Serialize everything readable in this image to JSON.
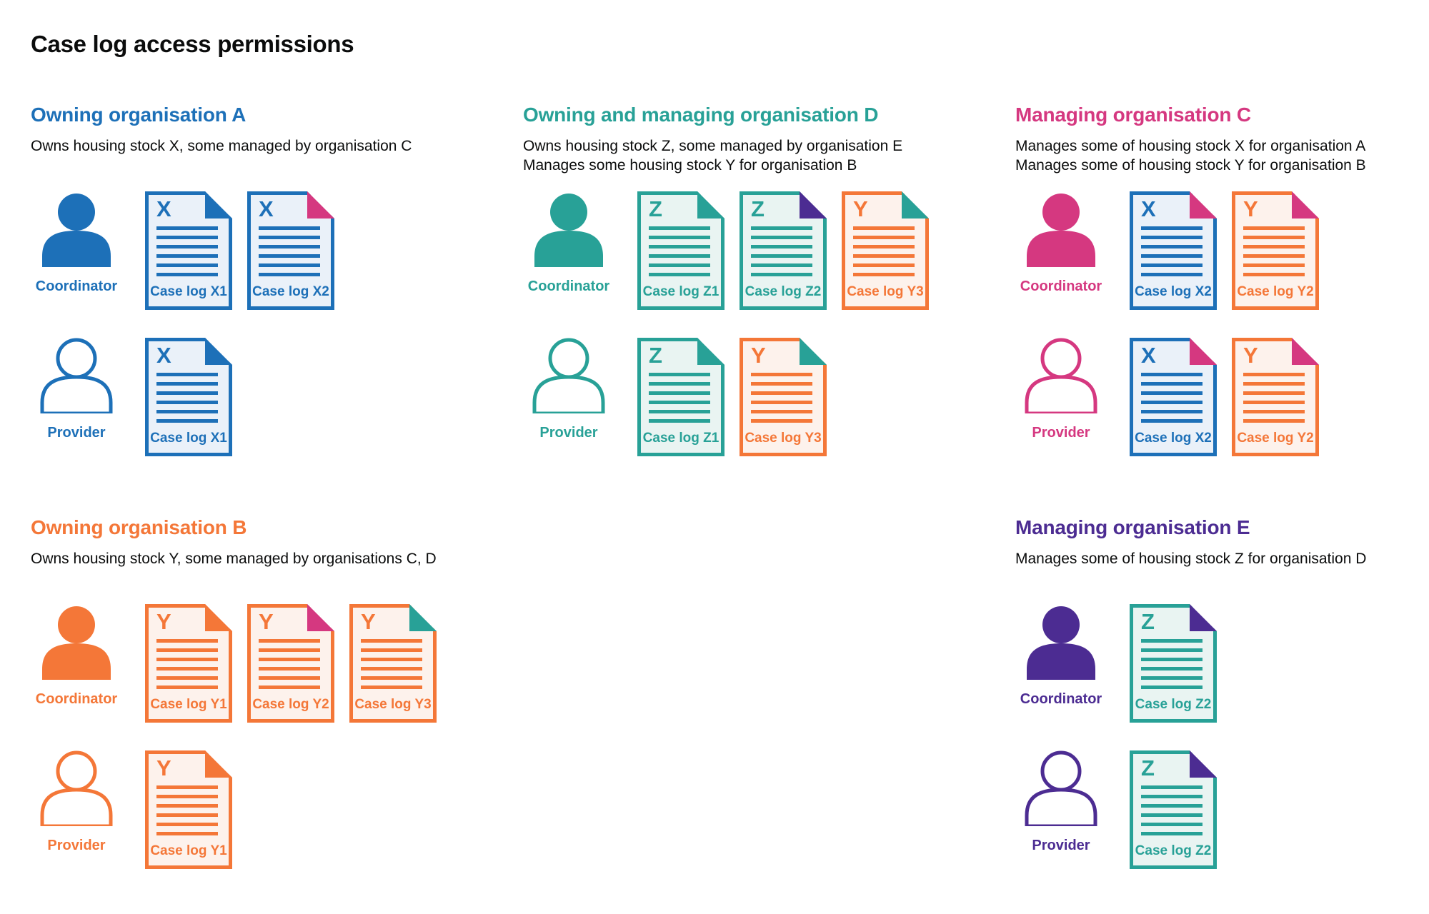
{
  "title": "Case log access permissions",
  "colors": {
    "blue": "#1d70b8",
    "teal": "#28a197",
    "orange": "#f47738",
    "pink": "#d53880",
    "purple": "#4c2c92",
    "text": "#0b0c0c",
    "blue_bg": "#eaf1f9",
    "teal_bg": "#e9f4f2",
    "orange_bg": "#fdf2ec"
  },
  "icons": {
    "coordinator": "person-filled-icon",
    "provider": "person-outline-icon",
    "document": "case-log-document-icon",
    "fold": "folded-corner-icon"
  },
  "sections": [
    {
      "id": "org-a",
      "title": "Owning organisation A",
      "color_key": "blue",
      "description_lines": [
        "Owns housing stock X, some managed by organisation C"
      ],
      "rows": [
        {
          "role": "Coordinator",
          "docs": [
            {
              "letter": "X",
              "label": "Case log X1",
              "doc_color": "blue",
              "fold_color": "blue"
            },
            {
              "letter": "X",
              "label": "Case log X2",
              "doc_color": "blue",
              "fold_color": "pink"
            }
          ]
        },
        {
          "role": "Provider",
          "docs": [
            {
              "letter": "X",
              "label": "Case log X1",
              "doc_color": "blue",
              "fold_color": "blue"
            }
          ]
        }
      ]
    },
    {
      "id": "org-d",
      "title": "Owning and managing organisation D",
      "color_key": "teal",
      "description_lines": [
        "Owns housing stock Z, some managed by organisation E",
        "Manages some housing stock Y for organisation B"
      ],
      "rows": [
        {
          "role": "Coordinator",
          "docs": [
            {
              "letter": "Z",
              "label": "Case log Z1",
              "doc_color": "teal",
              "fold_color": "teal"
            },
            {
              "letter": "Z",
              "label": "Case log Z2",
              "doc_color": "teal",
              "fold_color": "purple"
            },
            {
              "letter": "Y",
              "label": "Case log Y3",
              "doc_color": "orange",
              "fold_color": "teal"
            }
          ]
        },
        {
          "role": "Provider",
          "docs": [
            {
              "letter": "Z",
              "label": "Case log Z1",
              "doc_color": "teal",
              "fold_color": "teal"
            },
            {
              "letter": "Y",
              "label": "Case log Y3",
              "doc_color": "orange",
              "fold_color": "teal"
            }
          ]
        }
      ]
    },
    {
      "id": "org-c",
      "title": "Managing organisation C",
      "color_key": "pink",
      "description_lines": [
        "Manages some of housing stock X for organisation A",
        "Manages some of housing stock Y for organisation B"
      ],
      "rows": [
        {
          "role": "Coordinator",
          "docs": [
            {
              "letter": "X",
              "label": "Case log X2",
              "doc_color": "blue",
              "fold_color": "pink"
            },
            {
              "letter": "Y",
              "label": "Case log Y2",
              "doc_color": "orange",
              "fold_color": "pink"
            }
          ]
        },
        {
          "role": "Provider",
          "docs": [
            {
              "letter": "X",
              "label": "Case log X2",
              "doc_color": "blue",
              "fold_color": "pink"
            },
            {
              "letter": "Y",
              "label": "Case log Y2",
              "doc_color": "orange",
              "fold_color": "pink"
            }
          ]
        }
      ]
    },
    {
      "id": "org-b",
      "title": "Owning organisation B",
      "color_key": "orange",
      "description_lines": [
        "Owns housing stock Y, some managed by organisations C, D"
      ],
      "rows": [
        {
          "role": "Coordinator",
          "docs": [
            {
              "letter": "Y",
              "label": "Case log Y1",
              "doc_color": "orange",
              "fold_color": "orange"
            },
            {
              "letter": "Y",
              "label": "Case log Y2",
              "doc_color": "orange",
              "fold_color": "pink"
            },
            {
              "letter": "Y",
              "label": "Case log Y3",
              "doc_color": "orange",
              "fold_color": "teal"
            }
          ]
        },
        {
          "role": "Provider",
          "docs": [
            {
              "letter": "Y",
              "label": "Case log Y1",
              "doc_color": "orange",
              "fold_color": "orange"
            }
          ]
        }
      ]
    },
    {
      "id": "org-e",
      "title": "Managing organisation E",
      "color_key": "purple",
      "description_lines": [
        "Manages some of housing stock Z for organisation D"
      ],
      "rows": [
        {
          "role": "Coordinator",
          "docs": [
            {
              "letter": "Z",
              "label": "Case log Z2",
              "doc_color": "teal",
              "fold_color": "purple"
            }
          ]
        },
        {
          "role": "Provider",
          "docs": [
            {
              "letter": "Z",
              "label": "Case log Z2",
              "doc_color": "teal",
              "fold_color": "purple"
            }
          ]
        }
      ]
    }
  ]
}
